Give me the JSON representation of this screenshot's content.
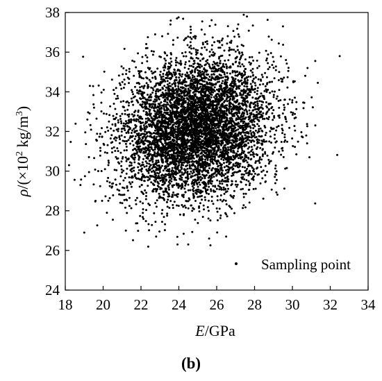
{
  "chart_data": {
    "type": "scatter",
    "xlabel": {
      "italic": "E",
      "rest": "/GPa"
    },
    "ylabel": {
      "italic": "ρ",
      "rest": "/(×10",
      "sup1": "2",
      "mid": " kg/m",
      "sup2": "3",
      "end": ")"
    },
    "xlim": [
      18,
      34
    ],
    "ylim": [
      24,
      38
    ],
    "xticks": [
      18,
      20,
      22,
      24,
      26,
      28,
      30,
      32,
      34
    ],
    "yticks": [
      24,
      26,
      28,
      30,
      32,
      34,
      36,
      38
    ],
    "legend": {
      "label": "Sampling point",
      "placement": "bottom-right"
    },
    "grid": false,
    "point_color": "#000000",
    "series": [
      {
        "distribution": "bivariate-normal",
        "n_points": 6000,
        "mean": [
          24.9,
          32.2
        ],
        "sd": [
          2.0,
          1.8
        ],
        "correlation": 0.15,
        "outliers": [
          [
            32.5,
            35.8
          ],
          [
            18.2,
            30.3
          ],
          [
            18.8,
            29.3
          ],
          [
            19.0,
            26.9
          ],
          [
            19.6,
            28.5
          ],
          [
            30.9,
            30.7
          ],
          [
            30.8,
            35.2
          ],
          [
            27.6,
            37.8
          ],
          [
            23.9,
            37.7
          ],
          [
            29.5,
            37.3
          ],
          [
            21.2,
            27.0
          ],
          [
            22.8,
            26.7
          ],
          [
            26.5,
            26.7
          ],
          [
            25.6,
            26.6
          ],
          [
            19.3,
            34.3
          ],
          [
            20.2,
            27.9
          ]
        ]
      }
    ]
  },
  "panel_label": "(b)"
}
